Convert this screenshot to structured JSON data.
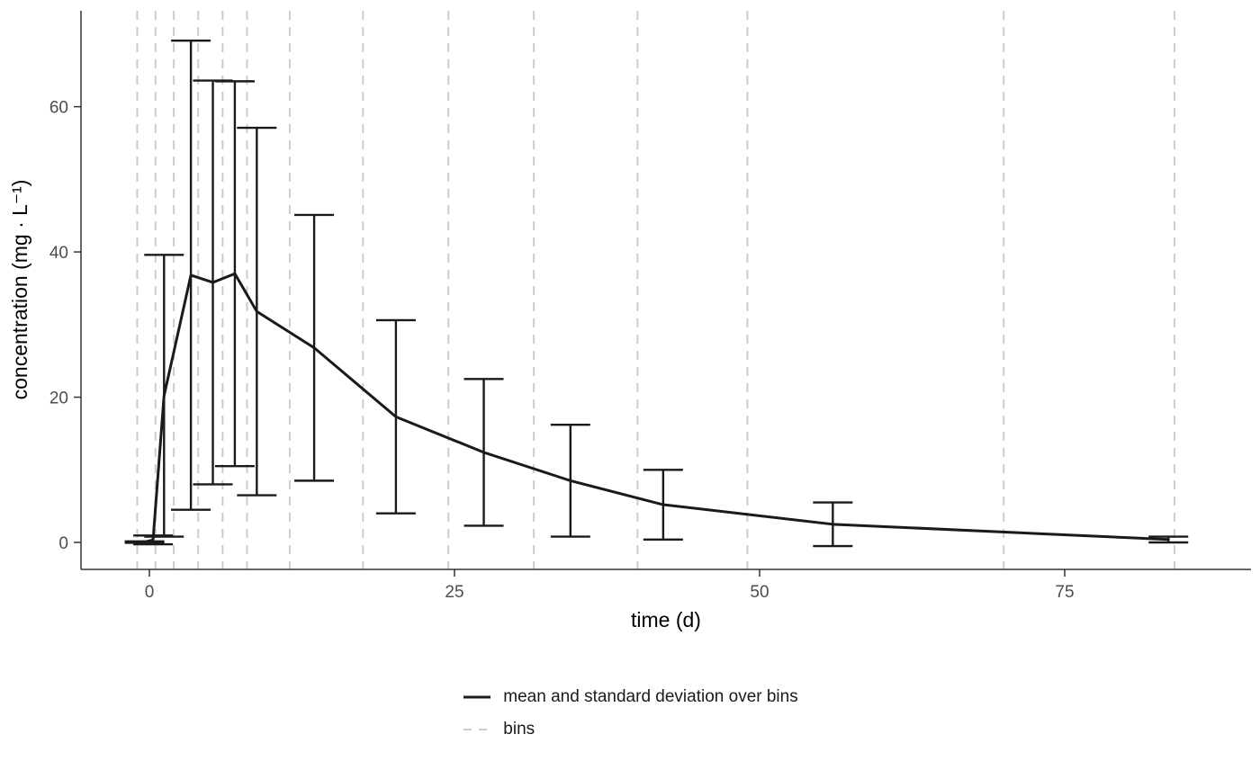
{
  "chart_data": {
    "type": "line",
    "title": "",
    "xlabel": "time (d)",
    "ylabel": "concentration (mg · L⁻¹)",
    "x_ticks": [
      0,
      25,
      50,
      75
    ],
    "y_ticks": [
      0,
      20,
      40,
      60
    ],
    "xlim": [
      -5.6,
      90.3
    ],
    "ylim": [
      -3.7,
      73.2
    ],
    "grid": "off",
    "legend_position": "bottom-center",
    "bins": [
      -1,
      0.5,
      2,
      4,
      6,
      8,
      11.5,
      17.5,
      24.5,
      31.5,
      40,
      49,
      70,
      84
    ],
    "points": [
      {
        "t": -0.4,
        "mean": 0.05,
        "sd": 0.1
      },
      {
        "t": 0.3,
        "mean": 0.35,
        "sd": 0.6
      },
      {
        "t": 1.2,
        "mean": 20.2,
        "sd": 19.4
      },
      {
        "t": 3.4,
        "mean": 36.8,
        "sd": 32.3
      },
      {
        "t": 5.2,
        "mean": 35.8,
        "sd": 27.8
      },
      {
        "t": 7.0,
        "mean": 37.0,
        "sd": 26.5
      },
      {
        "t": 8.8,
        "mean": 31.8,
        "sd": 25.3
      },
      {
        "t": 13.5,
        "mean": 26.8,
        "sd": 18.3
      },
      {
        "t": 20.2,
        "mean": 17.3,
        "sd": 13.3
      },
      {
        "t": 27.4,
        "mean": 12.4,
        "sd": 10.1
      },
      {
        "t": 34.5,
        "mean": 8.5,
        "sd": 7.7
      },
      {
        "t": 42.1,
        "mean": 5.2,
        "sd": 4.8
      },
      {
        "t": 56.0,
        "mean": 2.5,
        "sd": 3.0
      },
      {
        "t": 83.5,
        "mean": 0.4,
        "sd": 0.4
      }
    ],
    "colors": {
      "line": "#1a1a1a",
      "bins": "#cccccc",
      "axis": "#333333",
      "tick_text": "#4d4d4d"
    }
  },
  "legend": {
    "items": [
      {
        "label": "mean and standard deviation over bins",
        "style": "solid"
      },
      {
        "label": "bins",
        "style": "dashed"
      }
    ]
  }
}
